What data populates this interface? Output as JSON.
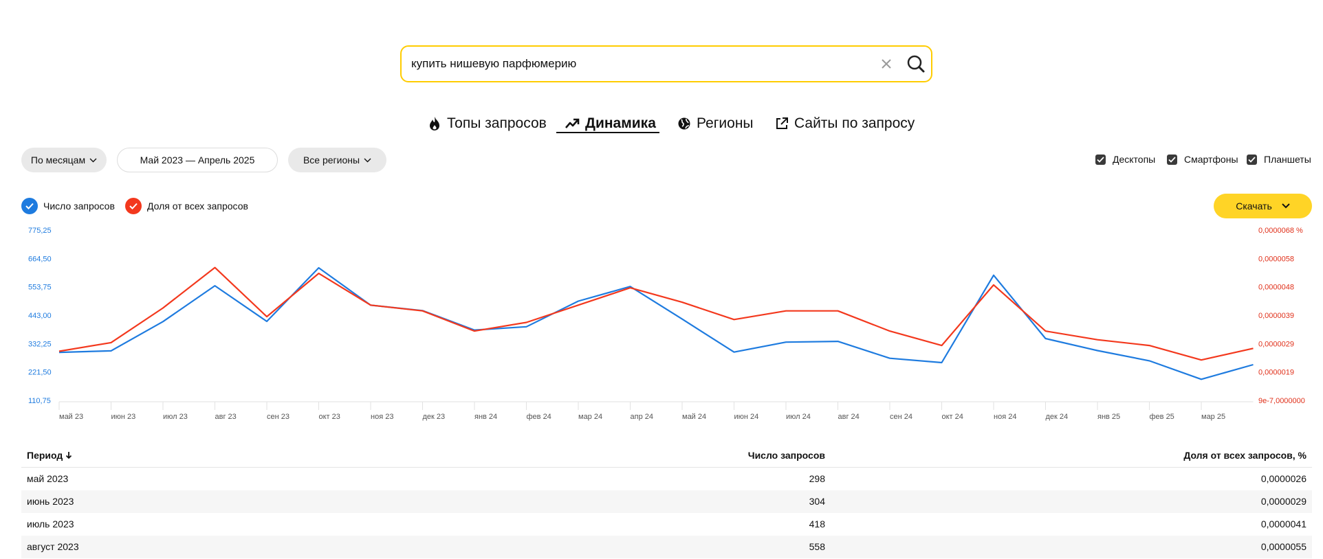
{
  "search": {
    "query": "купить нишевую парфюмерию"
  },
  "tabs": [
    {
      "label": "Топы запросов",
      "icon": "fire-icon"
    },
    {
      "label": "Динамика",
      "icon": "trend-icon",
      "active": true
    },
    {
      "label": "Регионы",
      "icon": "globe-icon"
    },
    {
      "label": "Сайты по запросу",
      "icon": "external-link-icon"
    }
  ],
  "filters": {
    "period_group": "По месяцам",
    "date_range": "Май 2023 — Апрель 2025",
    "regions": "Все регионы"
  },
  "devices": [
    {
      "label": "Десктопы",
      "checked": true
    },
    {
      "label": "Смартфоны",
      "checked": true
    },
    {
      "label": "Планшеты",
      "checked": true
    }
  ],
  "legend": {
    "queries": "Число запросов",
    "share": "Доля от всех запросов"
  },
  "download": {
    "label": "Скачать"
  },
  "colors": {
    "blue": "#1e7bdf",
    "red": "#f3381d",
    "accent": "#ffcc00"
  },
  "chart_data": {
    "type": "line",
    "x": [
      "май 23",
      "июн 23",
      "июл 23",
      "авг 23",
      "сен 23",
      "окт 23",
      "ноя 23",
      "дек 23",
      "янв 24",
      "фев 24",
      "мар 24",
      "апр 24",
      "май 24",
      "июн 24",
      "июл 24",
      "авг 24",
      "сен 24",
      "окт 24",
      "ноя 24",
      "дек 24",
      "янв 25",
      "фев 25",
      "мар 25",
      "апр 25"
    ],
    "x_tick_labels": [
      "май 23",
      "июн 23",
      "июл 23",
      "авг 23",
      "сен 23",
      "окт 23",
      "ноя 23",
      "дек 23",
      "янв 24",
      "фев 24",
      "мар 24",
      "апр 24",
      "май 24",
      "июн 24",
      "июл 24",
      "авг 24",
      "сен 24",
      "окт 24",
      "ноя 24",
      "дек 24",
      "янв 25",
      "фев 25",
      "мар 25"
    ],
    "left_axis": {
      "ticks": [
        110.75,
        221.5,
        332.25,
        443.0,
        553.75,
        664.5,
        775.25
      ],
      "tick_labels": [
        "110,75",
        "221,50",
        "332,25",
        "443,00",
        "553,75",
        "664,50",
        "775,25"
      ],
      "ylim": [
        110.75,
        775.25
      ]
    },
    "right_axis": {
      "tick_labels": [
        "9e-7,0000000",
        "0,0000019",
        "0,0000029",
        "0,0000039",
        "0,0000048",
        "0,0000058",
        "0,0000068 %"
      ],
      "ylim": [
        9e-07,
        6.8e-06
      ]
    },
    "series": [
      {
        "name": "Число запросов",
        "axis": "left",
        "color": "#1e7bdf",
        "values": [
          298,
          304,
          418,
          558,
          419,
          628,
          482,
          461,
          385,
          398,
          498,
          555,
          428,
          299,
          338,
          341,
          275,
          258,
          599,
          352,
          305,
          265,
          193,
          250
        ]
      },
      {
        "name": "Доля от всех запросов",
        "axis": "right",
        "color": "#f3381d",
        "values": [
          2.6e-06,
          2.9e-06,
          4.1e-06,
          5.5e-06,
          3.8e-06,
          5.3e-06,
          4.2e-06,
          4e-06,
          3.3e-06,
          3.6e-06,
          4.2e-06,
          4.8e-06,
          4.3e-06,
          3.7e-06,
          4e-06,
          4e-06,
          3.3e-06,
          2.8e-06,
          4.9e-06,
          3.3e-06,
          3e-06,
          2.8e-06,
          2.3e-06,
          2.7e-06
        ]
      }
    ]
  },
  "table": {
    "headers": [
      "Период",
      "Число запросов",
      "Доля от всех запросов, %"
    ],
    "rows": [
      [
        "май 2023",
        "298",
        "0,0000026"
      ],
      [
        "июнь 2023",
        "304",
        "0,0000029"
      ],
      [
        "июль 2023",
        "418",
        "0,0000041"
      ],
      [
        "август 2023",
        "558",
        "0,0000055"
      ]
    ]
  }
}
